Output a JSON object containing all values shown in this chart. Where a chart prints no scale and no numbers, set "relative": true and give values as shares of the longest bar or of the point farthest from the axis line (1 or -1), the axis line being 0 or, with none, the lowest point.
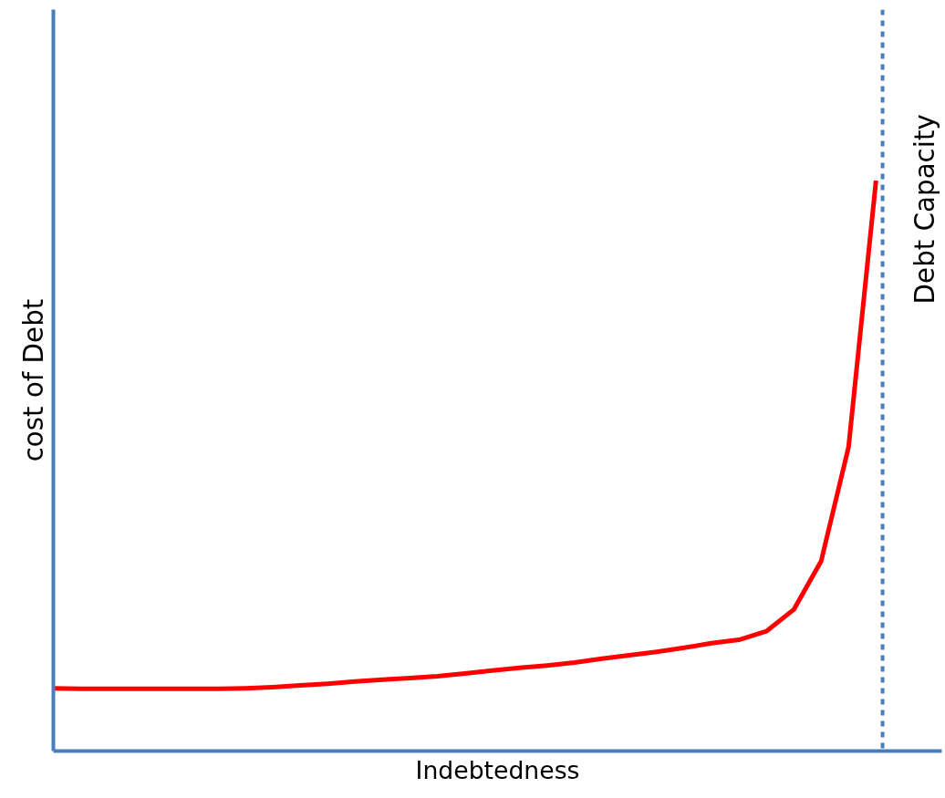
{
  "chart_data": {
    "type": "line",
    "relative": true,
    "xlabel": "Indebtedness",
    "ylabel": "cost of Debt",
    "categories": [
      null,
      null,
      null,
      null,
      null,
      null,
      null,
      null,
      null,
      null,
      null,
      null,
      null,
      null,
      null,
      null,
      null,
      null,
      null,
      null,
      null,
      null,
      null,
      null,
      null,
      null,
      null,
      null,
      null,
      null,
      null
    ],
    "series": [
      {
        "color": "#ff0000",
        "values": [
          0.11,
          0.109,
          0.109,
          0.109,
          0.109,
          0.109,
          0.109,
          0.11,
          0.112,
          0.115,
          0.118,
          0.122,
          0.125,
          0.128,
          0.131,
          0.136,
          0.141,
          0.146,
          0.15,
          0.155,
          0.162,
          0.168,
          0.174,
          0.181,
          0.189,
          0.195,
          0.21,
          0.248,
          0.333,
          0.533,
          1
        ]
      }
    ],
    "ref_lines": [
      {
        "axis": "x",
        "value": null,
        "label": "Debt Capacity",
        "color": "#4a7ebb",
        "line_style": "dashed"
      }
    ],
    "marker": "none",
    "line_style": "solid"
  }
}
